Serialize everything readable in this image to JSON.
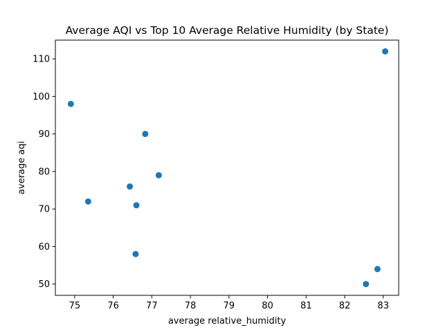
{
  "chart_data": {
    "type": "scatter",
    "title": "Average AQI vs Top 10 Average Relative Humidity (by State)",
    "xlabel": "average relative_humidity",
    "ylabel": "average aqi",
    "xlim": [
      74.5,
      83.4
    ],
    "ylim": [
      47,
      115
    ],
    "xticks": [
      75,
      76,
      77,
      78,
      79,
      80,
      81,
      82,
      83
    ],
    "yticks": [
      50,
      60,
      70,
      80,
      90,
      100,
      110
    ],
    "grid": false,
    "legend": "none",
    "marker_color": "#1f77b4",
    "points": [
      {
        "x": 74.9,
        "y": 98
      },
      {
        "x": 75.35,
        "y": 72
      },
      {
        "x": 76.43,
        "y": 76
      },
      {
        "x": 76.58,
        "y": 58
      },
      {
        "x": 76.6,
        "y": 71
      },
      {
        "x": 76.83,
        "y": 90
      },
      {
        "x": 77.18,
        "y": 79
      },
      {
        "x": 82.55,
        "y": 50
      },
      {
        "x": 82.85,
        "y": 54
      },
      {
        "x": 83.05,
        "y": 112
      }
    ]
  }
}
